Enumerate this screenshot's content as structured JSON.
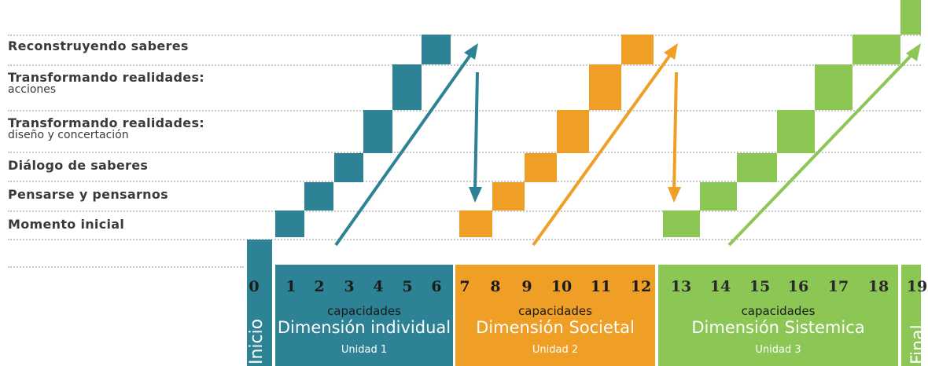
{
  "rows": [
    {
      "title": "Reconstruyendo saberes",
      "subtitle": ""
    },
    {
      "title": "Transformando realidades:",
      "subtitle": "acciones"
    },
    {
      "title": "Transformando realidades:",
      "subtitle": "diseño y concertación"
    },
    {
      "title": "Diálogo de saberes",
      "subtitle": ""
    },
    {
      "title": "Pensarse y pensarnos",
      "subtitle": ""
    },
    {
      "title": "Momento inicial",
      "subtitle": ""
    }
  ],
  "start": {
    "number": "0",
    "label": "Inicio"
  },
  "end": {
    "number": "19",
    "label": "Final"
  },
  "units": [
    {
      "numbers": [
        "1",
        "2",
        "3",
        "4",
        "5",
        "6"
      ],
      "caption": "capacidades",
      "dimension": "Dimensión individual",
      "unit": "Unidad 1",
      "color": "#2e8296"
    },
    {
      "numbers": [
        "7",
        "8",
        "9",
        "10",
        "11",
        "12"
      ],
      "caption": "capacidades",
      "dimension": "Dimensión Societal",
      "unit": "Unidad 2",
      "color": "#ef9e26"
    },
    {
      "numbers": [
        "13",
        "14",
        "15",
        "16",
        "17",
        "18"
      ],
      "caption": "capacidades",
      "dimension": "Dimensión Sistemica",
      "unit": "Unidad 3",
      "color": "#8cc655"
    }
  ]
}
